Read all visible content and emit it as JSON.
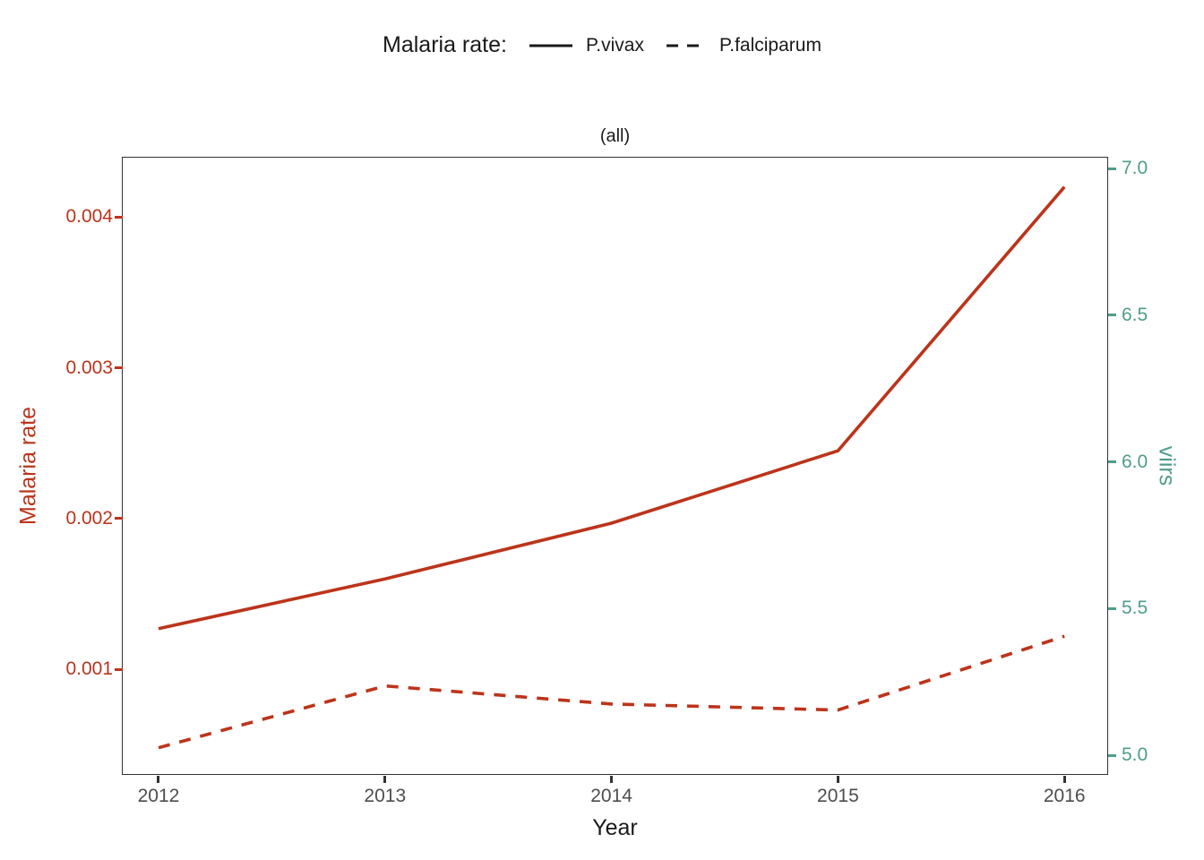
{
  "colors": {
    "malaria_red": "#bc341b",
    "viirs_teal": "#4f9d8b",
    "legend_black": "#1a1a1a",
    "panel_border": "#333333",
    "x_tick_text": "#4d4d4d"
  },
  "legend": {
    "title": "Malaria rate:",
    "items": [
      {
        "label": "P.vivax",
        "style": "solid"
      },
      {
        "label": "P.falciparum",
        "style": "dashed"
      }
    ]
  },
  "subtitle": "(all)",
  "axes": {
    "x": {
      "title": "Year"
    },
    "y_left": {
      "title": "Malaria rate",
      "ticks": [
        "0.004",
        "0.003",
        "0.002",
        "0.001"
      ]
    },
    "y_right": {
      "title": "viirs",
      "ticks": [
        "7.0",
        "6.5",
        "6.0",
        "5.5",
        "5.0"
      ]
    }
  },
  "chart_data": {
    "type": "line",
    "title": "Malaria rate:",
    "subtitle": "(all)",
    "xlabel": "Year",
    "ylabel_left": "Malaria rate",
    "ylabel_right": "viirs",
    "x": [
      2012,
      2013,
      2014,
      2015,
      2016
    ],
    "series": [
      {
        "name": "P.vivax",
        "style": "solid",
        "axis": "left",
        "values": [
          0.00127,
          0.0016,
          0.00197,
          0.00245,
          0.0042
        ]
      },
      {
        "name": "P.falciparum",
        "style": "dashed",
        "axis": "left",
        "values": [
          0.00048,
          0.00089,
          0.00077,
          0.00073,
          0.00122
        ]
      }
    ],
    "xlim": [
      2011.838,
      2016.193
    ],
    "ylim_left": [
      0.0003,
      0.0044
    ],
    "ylim_right": [
      4.933,
      7.04
    ],
    "yticks_left": [
      0.004,
      0.003,
      0.002,
      0.001
    ],
    "yticks_right": [
      7.0,
      6.5,
      6.0,
      5.5,
      5.0
    ],
    "grid": false,
    "legend_position": "top",
    "line_color": "#bc341b"
  }
}
